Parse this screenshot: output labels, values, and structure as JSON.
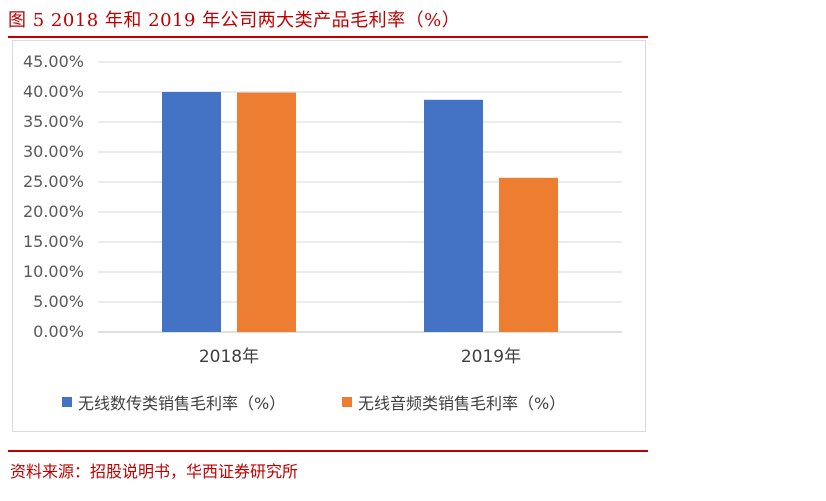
{
  "figure": {
    "title": "图 5   2018 年和 2019 年公司两大类产品毛利率（%）",
    "source": "资料来源：招股说明书，华西证券研究所"
  },
  "chart_data": {
    "type": "bar",
    "categories": [
      "2018年",
      "2019年"
    ],
    "series": [
      {
        "name": "无线数传类销售毛利率（%）",
        "color": "#4472c4",
        "values": [
          40.0,
          38.7
        ]
      },
      {
        "name": "无线音频类销售毛利率（%）",
        "color": "#ed7d31",
        "values": [
          39.9,
          25.7
        ]
      }
    ],
    "yticks": [
      "0.00%",
      "5.00%",
      "10.00%",
      "15.00%",
      "20.00%",
      "25.00%",
      "30.00%",
      "35.00%",
      "40.00%",
      "45.00%"
    ],
    "ylim": [
      0,
      45
    ],
    "grid": true,
    "legend_position": "bottom"
  }
}
